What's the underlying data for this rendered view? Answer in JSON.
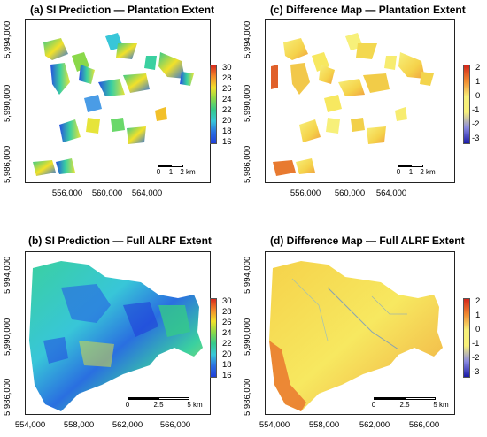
{
  "panels": [
    {
      "id": "a",
      "title": "(a) SI Prediction — Plantation Extent",
      "y_ticks": [
        "5,994,000",
        "5,990,000",
        "5,986,000"
      ],
      "x_ticks": [
        "556,000",
        "560,000",
        "564,000"
      ],
      "legend_ticks": [
        "30",
        "28",
        "26",
        "24",
        "22",
        "20",
        "18",
        "16"
      ],
      "colormap": "blue-green-yellow-red",
      "scalebar": {
        "labels": [
          "0",
          "1",
          "2 km"
        ]
      }
    },
    {
      "id": "c",
      "title": "(c) Difference Map — Plantation Extent",
      "y_ticks": [
        "5,994,000",
        "5,990,000",
        "5,986,000"
      ],
      "x_ticks": [
        "556,000",
        "560,000",
        "564,000"
      ],
      "legend_ticks": [
        "2",
        "1",
        "0",
        "-1",
        "-2",
        "-3"
      ],
      "colormap": "blue-yellow-red",
      "scalebar": {
        "labels": [
          "0",
          "1",
          "2 km"
        ]
      }
    },
    {
      "id": "b",
      "title": "(b) SI Prediction — Full ALRF Extent",
      "y_ticks": [
        "5,994,000",
        "5,990,000",
        "5,986,000"
      ],
      "x_ticks": [
        "554,000",
        "558,000",
        "562,000",
        "566,000"
      ],
      "legend_ticks": [
        "30",
        "28",
        "26",
        "24",
        "22",
        "20",
        "18",
        "16"
      ],
      "colormap": "blue-green-yellow-red",
      "scalebar": {
        "labels": [
          "0",
          "2.5",
          "5 km"
        ]
      }
    },
    {
      "id": "d",
      "title": "(d) Difference Map — Full ALRF Extent",
      "y_ticks": [
        "5,994,000",
        "5,990,000",
        "5,986,000"
      ],
      "x_ticks": [
        "554,000",
        "558,000",
        "562,000",
        "566,000"
      ],
      "legend_ticks": [
        "2",
        "1",
        "0",
        "-1",
        "-2",
        "-3"
      ],
      "colormap": "blue-yellow-red",
      "scalebar": {
        "labels": [
          "0",
          "2.5",
          "5 km"
        ]
      }
    }
  ],
  "colors": {
    "si_low": "#1f3fd8",
    "si_mid": "#35c98a",
    "si_high_yellow": "#f2e12a",
    "si_high_red": "#d62a1c",
    "diff_negative": "#1a1aa8",
    "diff_zero": "#f7f07a",
    "diff_positive": "#d4261a"
  }
}
